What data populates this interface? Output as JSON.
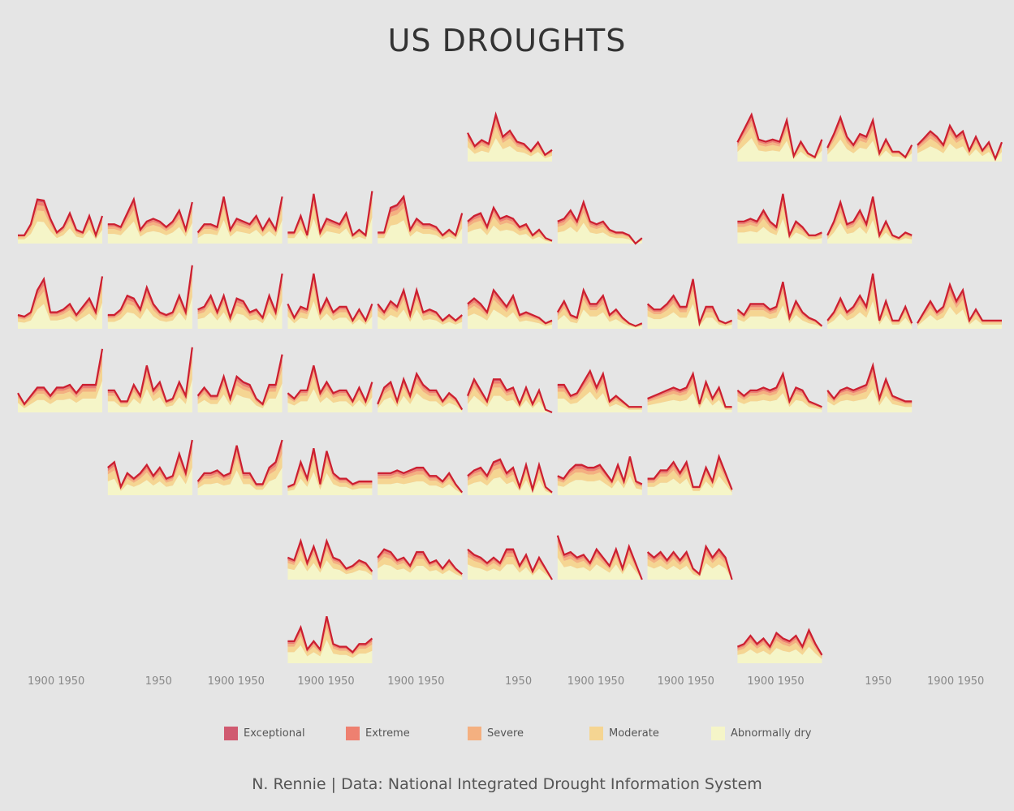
{
  "title": "US DROUGHTS",
  "caption": "N. Rennie | Data: National Integrated Drought Information System",
  "chart_data": {
    "type": "area",
    "title": "US DROUGHTS",
    "facet": "geofacet by US state (stacked area, share of state in drought over time)",
    "x_ticks": [
      "1900 1950",
      "1950",
      "1900 1950",
      "1900 1950",
      "1900 1950",
      "1950",
      "1900 1950",
      "1900 1950",
      "1900 1950",
      "1950",
      "1900 1950"
    ],
    "legend": [
      {
        "name": "Exceptional",
        "color": "#d05a70"
      },
      {
        "name": "Extreme",
        "color": "#ee8070"
      },
      {
        "name": "Severe",
        "color": "#f4b080"
      },
      {
        "name": "Moderate",
        "color": "#f5d592"
      },
      {
        "name": "Abnormally dry",
        "color": "#f5f5c8"
      }
    ],
    "line_color": "#cc1f30",
    "layer_shares": {
      "Abnormally dry": 0.5,
      "Moderate": 0.25,
      "Severe": 0.12,
      "Extreme": 0.08,
      "Exceptional": 0.05
    },
    "ylim": [
      0,
      100
    ],
    "panels": [
      [
        52,
        28,
        39,
        32,
        85,
        45,
        56,
        36,
        32,
        19,
        35,
        12,
        21
      ],
      [
        35,
        60,
        85,
        40,
        36,
        40,
        36,
        75,
        10,
        36,
        15,
        8,
        40
      ],
      [
        25,
        50,
        80,
        45,
        30,
        50,
        45,
        75,
        15,
        40,
        18,
        18,
        8,
        30
      ],
      [
        30,
        42,
        55,
        45,
        30,
        65,
        45,
        55,
        20,
        45,
        20,
        35,
        5,
        35
      ],
      [
        15,
        15,
        35,
        80,
        78,
        45,
        20,
        30,
        55,
        25,
        20,
        50,
        15,
        50
      ],
      [
        35,
        35,
        30,
        55,
        80,
        25,
        40,
        45,
        40,
        30,
        40,
        60,
        25,
        75
      ],
      [
        20,
        35,
        35,
        30,
        85,
        25,
        45,
        40,
        35,
        50,
        25,
        45,
        25,
        85
      ],
      [
        20,
        20,
        50,
        15,
        90,
        20,
        45,
        40,
        35,
        55,
        15,
        25,
        15,
        95
      ],
      [
        20,
        20,
        65,
        70,
        85,
        25,
        45,
        35,
        35,
        30,
        15,
        25,
        15,
        55
      ],
      [
        40,
        50,
        55,
        30,
        65,
        45,
        50,
        45,
        30,
        35,
        15,
        25,
        10,
        5
      ],
      [
        40,
        45,
        60,
        40,
        75,
        40,
        35,
        40,
        25,
        20,
        20,
        15,
        0,
        10
      ],
      [
        40,
        40,
        45,
        40,
        60,
        40,
        30,
        90,
        15,
        40,
        30,
        15,
        15,
        20
      ],
      [
        15,
        40,
        75,
        35,
        40,
        60,
        35,
        85,
        15,
        40,
        15,
        10,
        20,
        15
      ],
      [
        25,
        22,
        30,
        70,
        90,
        30,
        30,
        35,
        45,
        25,
        40,
        55,
        30,
        95
      ],
      [
        25,
        25,
        35,
        60,
        55,
        35,
        75,
        45,
        30,
        25,
        30,
        60,
        30,
        115
      ],
      [
        35,
        40,
        60,
        30,
        60,
        20,
        55,
        50,
        30,
        35,
        20,
        60,
        30,
        100
      ],
      [
        45,
        20,
        40,
        35,
        100,
        30,
        55,
        30,
        40,
        40,
        15,
        35,
        15,
        45
      ],
      [
        45,
        30,
        50,
        40,
        70,
        25,
        70,
        30,
        35,
        30,
        15,
        25,
        15,
        25
      ],
      [
        45,
        55,
        45,
        30,
        70,
        55,
        40,
        60,
        25,
        30,
        25,
        20,
        10,
        15
      ],
      [
        30,
        50,
        25,
        20,
        70,
        45,
        45,
        60,
        25,
        35,
        20,
        10,
        5,
        10
      ],
      [
        45,
        35,
        35,
        45,
        60,
        40,
        40,
        90,
        10,
        40,
        40,
        15,
        10,
        15
      ],
      [
        35,
        25,
        45,
        45,
        45,
        35,
        40,
        85,
        20,
        50,
        30,
        20,
        15,
        5
      ],
      [
        15,
        30,
        55,
        30,
        40,
        60,
        40,
        100,
        15,
        50,
        15,
        15,
        40,
        10
      ],
      [
        10,
        30,
        50,
        30,
        40,
        80,
        50,
        70,
        15,
        35,
        15,
        15,
        15,
        15
      ],
      [
        35,
        15,
        30,
        45,
        45,
        30,
        45,
        45,
        50,
        35,
        50,
        50,
        50,
        115
      ],
      [
        40,
        40,
        20,
        20,
        50,
        30,
        85,
        40,
        55,
        20,
        25,
        55,
        30,
        120
      ],
      [
        30,
        45,
        30,
        30,
        65,
        25,
        65,
        55,
        50,
        25,
        15,
        50,
        50,
        105
      ],
      [
        35,
        25,
        40,
        40,
        85,
        35,
        55,
        35,
        40,
        40,
        20,
        45,
        20,
        55
      ],
      [
        15,
        45,
        55,
        20,
        60,
        30,
        70,
        50,
        40,
        40,
        20,
        35,
        25,
        5
      ],
      [
        30,
        60,
        40,
        20,
        60,
        60,
        40,
        45,
        15,
        45,
        15,
        40,
        5,
        0
      ],
      [
        50,
        50,
        30,
        35,
        55,
        75,
        45,
        70,
        20,
        30,
        20,
        10,
        10,
        10
      ],
      [
        25,
        30,
        35,
        40,
        45,
        40,
        45,
        70,
        15,
        55,
        25,
        45,
        10,
        10
      ],
      [
        40,
        30,
        40,
        40,
        45,
        40,
        45,
        70,
        20,
        45,
        40,
        20,
        15,
        10
      ],
      [
        40,
        25,
        40,
        45,
        40,
        45,
        50,
        85,
        25,
        60,
        30,
        25,
        20,
        20
      ],
      [
        50,
        60,
        15,
        40,
        30,
        40,
        55,
        35,
        50,
        30,
        35,
        75,
        40,
        100
      ],
      [
        25,
        40,
        40,
        45,
        35,
        40,
        90,
        40,
        40,
        20,
        20,
        50,
        60,
        100
      ],
      [
        15,
        20,
        60,
        30,
        85,
        20,
        80,
        40,
        30,
        30,
        20,
        25,
        25,
        25
      ],
      [
        40,
        40,
        40,
        45,
        40,
        45,
        50,
        50,
        35,
        35,
        25,
        40,
        20,
        5
      ],
      [
        35,
        45,
        50,
        35,
        60,
        65,
        40,
        50,
        15,
        55,
        10,
        55,
        15,
        5
      ],
      [
        35,
        30,
        45,
        55,
        55,
        50,
        50,
        55,
        40,
        25,
        55,
        25,
        70,
        25,
        20
      ],
      [
        30,
        30,
        45,
        45,
        60,
        40,
        60,
        15,
        15,
        50,
        25,
        70,
        40,
        10
      ],
      [
        40,
        35,
        70,
        30,
        60,
        25,
        70,
        40,
        35,
        20,
        25,
        35,
        30,
        15
      ],
      [
        40,
        55,
        50,
        35,
        40,
        25,
        50,
        50,
        30,
        35,
        20,
        35,
        20,
        10
      ],
      [
        55,
        45,
        40,
        30,
        40,
        30,
        55,
        55,
        25,
        45,
        15,
        40,
        20,
        0
      ],
      [
        80,
        45,
        50,
        40,
        45,
        30,
        55,
        40,
        25,
        55,
        20,
        60,
        30,
        0
      ],
      [
        50,
        40,
        50,
        35,
        50,
        35,
        50,
        20,
        10,
        60,
        40,
        55,
        40,
        0
      ],
      [
        40,
        40,
        65,
        25,
        40,
        25,
        85,
        35,
        30,
        30,
        20,
        35,
        35,
        45
      ],
      [
        30,
        35,
        50,
        35,
        45,
        30,
        55,
        45,
        40,
        50,
        30,
        60,
        35,
        15
      ]
    ]
  }
}
